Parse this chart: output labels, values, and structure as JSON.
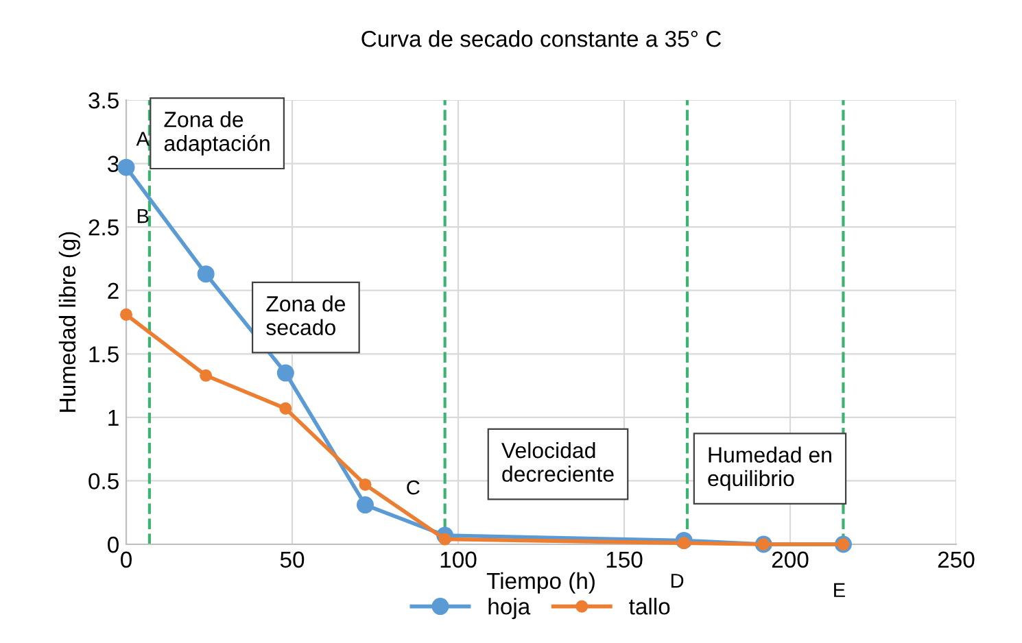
{
  "chart_data": {
    "type": "line",
    "title": "Curva de secado constante a 35° C",
    "xlabel": "Tiempo (h)",
    "ylabel": "Humedad libre (g)",
    "series": [
      {
        "name": "hoja",
        "color": "#5b9bd5",
        "x": [
          0,
          24,
          48,
          72,
          96,
          168,
          192,
          216
        ],
        "values": [
          2.97,
          2.13,
          1.35,
          0.31,
          0.07,
          0.03,
          0.0,
          0.0
        ]
      },
      {
        "name": "tallo",
        "color": "#ed7d31",
        "x": [
          0,
          24,
          48,
          72,
          96,
          168,
          192,
          216
        ],
        "values": [
          1.81,
          1.33,
          1.07,
          0.47,
          0.04,
          0.01,
          0.0,
          0.0
        ]
      }
    ],
    "xlim": [
      0,
      250
    ],
    "xticks": [
      0,
      50,
      100,
      150,
      200,
      250
    ],
    "ylim": [
      0,
      3.5
    ],
    "yticks": [
      0,
      0.5,
      1,
      1.5,
      2,
      2.5,
      3,
      3.5
    ],
    "ref_lines": [
      {
        "axis": "x",
        "value": 7,
        "label": null,
        "color": "#3cb371",
        "line_style": "dashed"
      },
      {
        "axis": "x",
        "value": 96,
        "label": null,
        "color": "#3cb371",
        "line_style": "dashed"
      },
      {
        "axis": "x",
        "value": 169,
        "label": null,
        "color": "#3cb371",
        "line_style": "dashed"
      },
      {
        "axis": "x",
        "value": 216,
        "label": null,
        "color": "#3cb371",
        "line_style": "dashed"
      }
    ],
    "annotations": [
      "Zona de\nadaptación",
      "Zona de\nsecado",
      "Velocidad\ndecreciente",
      "Humedad en\nequilibrio",
      "A",
      "B",
      "C",
      "D",
      "E"
    ],
    "grid": true,
    "legend": "bottom",
    "marker": "circle",
    "line_style": "solid"
  }
}
